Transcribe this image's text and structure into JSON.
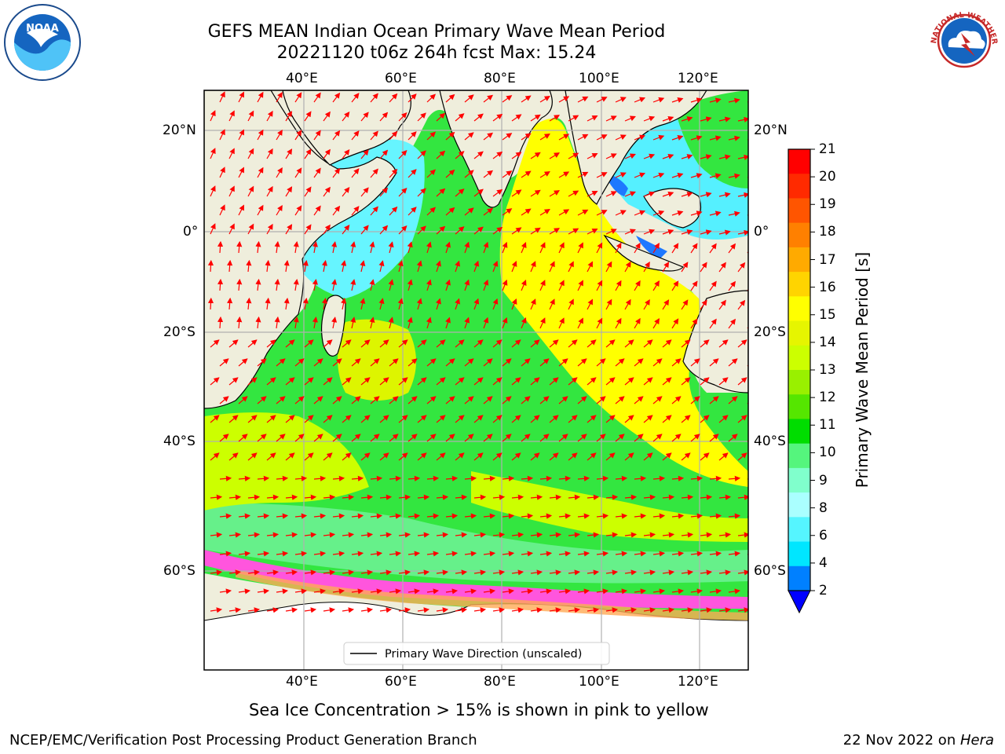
{
  "title": {
    "line1": "GEFS MEAN Indian Ocean Primary Wave Mean Period",
    "line2": "20221120 t06z 264h fcst   Max: 15.24"
  },
  "axes": {
    "lon_labels": [
      "40°E",
      "60°E",
      "80°E",
      "100°E",
      "120°E"
    ],
    "lat_labels": [
      "20°N",
      "0°",
      "20°S",
      "40°S",
      "60°S"
    ]
  },
  "colorbar": {
    "label": "Primary Wave Mean Period [s]",
    "ticks": [
      "21",
      "20",
      "19",
      "18",
      "17",
      "16",
      "15",
      "14",
      "13",
      "12",
      "11",
      "10",
      "9",
      "8",
      "6",
      "4",
      "2"
    ],
    "colors": [
      "#ff0000",
      "#ff2a00",
      "#ff5500",
      "#ff8000",
      "#ffaa00",
      "#ffd400",
      "#ffff00",
      "#e6f500",
      "#ccff00",
      "#99f000",
      "#55e600",
      "#00dd00",
      "#55f57d",
      "#80ffcc",
      "#aaffff",
      "#55f5ff",
      "#00e6ff",
      "#0080ff"
    ]
  },
  "legend": {
    "label": "Primary Wave Direction (unscaled)"
  },
  "sea_ice_note": "Sea Ice Concentration > 15% is shown in pink to yellow",
  "footer": {
    "left": "NCEP/EMC/Verification Post Processing Product Generation Branch",
    "right_date": "22 Nov 2022 on ",
    "right_host": "Hera"
  },
  "logos": {
    "noaa": "NOAA",
    "nws": "NATIONAL WEATHER SERVICE"
  }
}
